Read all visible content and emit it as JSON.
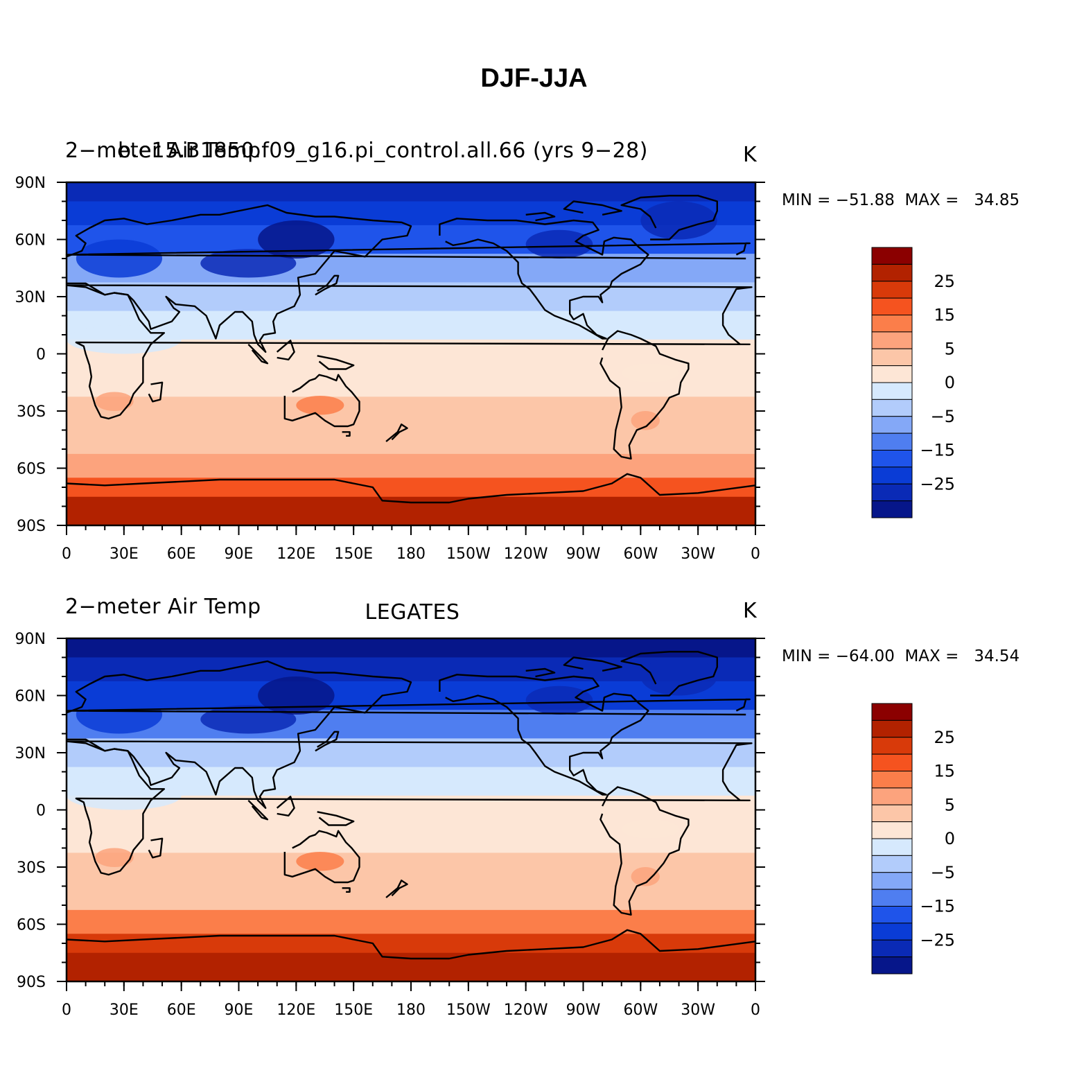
{
  "title": "DJF-JJA",
  "panels": [
    {
      "variable": "2-meter Air Temp",
      "case": "b.e15.B1850.f09_g16.pi_control.all.66 (yrs 9-28)",
      "units": "K",
      "stats": "MIN = -51.88  MAX =   34.85"
    },
    {
      "variable": "2-meter Air Temp",
      "case": "LEGATES",
      "units": "K",
      "stats": "MIN = -64.00  MAX =   34.54"
    }
  ],
  "axes": {
    "lat_labels": [
      "90N",
      "60N",
      "30N",
      "0",
      "30S",
      "60S",
      "90S"
    ],
    "lon_labels": [
      "0",
      "30E",
      "60E",
      "90E",
      "120E",
      "150E",
      "180",
      "150W",
      "120W",
      "90W",
      "60W",
      "30W",
      "0"
    ]
  },
  "colorbar": {
    "labels": [
      "25",
      "15",
      "5",
      "0",
      "-5",
      "-15",
      "-25"
    ],
    "colors": [
      "#8b0000",
      "#b22200",
      "#d83a0a",
      "#f5531f",
      "#fb7e4a",
      "#fca37d",
      "#fcc6a8",
      "#fde6d6",
      "#d6e9fd",
      "#b2ccfb",
      "#84a8f7",
      "#4f7ef0",
      "#1f54ea",
      "#0a3cd6",
      "#0a2ab6",
      "#06168a"
    ]
  },
  "chart_data": [
    {
      "type": "heatmap",
      "title": "DJF-JJA",
      "subtitle": "b.e15.B1850.f09_g16.pi_control.all.66 (yrs 9-28)",
      "variable": "2-meter Air Temp",
      "units": "K",
      "x_range": [
        0,
        360
      ],
      "y_range": [
        -90,
        90
      ],
      "min": -51.88,
      "max": 34.85,
      "zonal_mean_profile": {
        "lat": [
          85,
          75,
          60,
          45,
          30,
          15,
          0,
          -15,
          -30,
          -45,
          -60,
          -70,
          -80
        ],
        "value": [
          -30,
          -25,
          -20,
          -12,
          -6,
          -2,
          1,
          4,
          6,
          5,
          9,
          20,
          28
        ]
      }
    },
    {
      "type": "heatmap",
      "title": "DJF-JJA",
      "subtitle": "LEGATES",
      "variable": "2-meter Air Temp",
      "units": "K",
      "x_range": [
        0,
        360
      ],
      "y_range": [
        -90,
        90
      ],
      "min": -64.0,
      "max": 34.54,
      "zonal_mean_profile": {
        "lat": [
          85,
          75,
          60,
          45,
          30,
          15,
          0,
          -15,
          -30,
          -45,
          -60,
          -70,
          -80
        ],
        "value": [
          -32,
          -28,
          -22,
          -14,
          -8,
          -2,
          1,
          4,
          6,
          5,
          14,
          22,
          28
        ]
      }
    }
  ]
}
